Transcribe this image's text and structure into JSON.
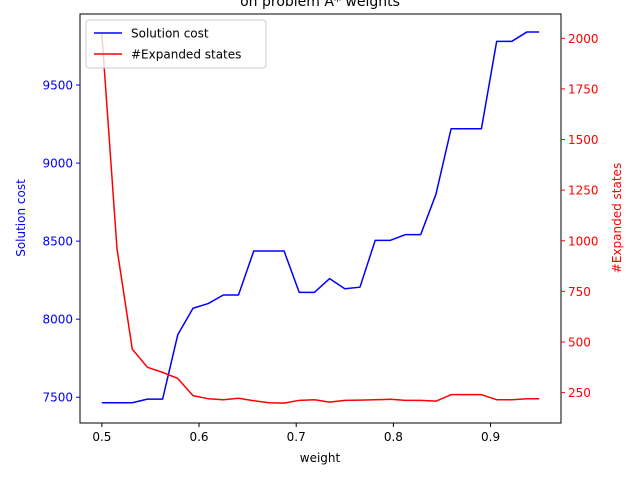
{
  "chart_data": {
    "type": "line",
    "title": "on problem A* weights",
    "xlabel": "weight",
    "ylabel_left": "Solution cost",
    "ylabel_right": "#Expanded states",
    "xlim": [
      0.4775,
      0.9725
    ],
    "ylim_left": [
      7335,
      9955
    ],
    "ylim_right": [
      100,
      2120
    ],
    "x_ticks": [
      0.5,
      0.6,
      0.7,
      0.8,
      0.9
    ],
    "x_tick_labels": [
      "0.5",
      "0.6",
      "0.7",
      "0.8",
      "0.9"
    ],
    "y_left_ticks": [
      7500,
      8000,
      8500,
      9000,
      9500
    ],
    "y_left_tick_labels": [
      "7500",
      "8000",
      "8500",
      "9000",
      "9500"
    ],
    "y_right_ticks": [
      250,
      500,
      750,
      1000,
      1250,
      1500,
      1750,
      2000
    ],
    "y_right_tick_labels": [
      "250",
      "500",
      "750",
      "1000",
      "1250",
      "1500",
      "1750",
      "2000"
    ],
    "x": [
      0.5,
      0.5156,
      0.5313,
      0.5469,
      0.5625,
      0.5781,
      0.5938,
      0.6094,
      0.625,
      0.6406,
      0.6563,
      0.6719,
      0.6875,
      0.7031,
      0.7188,
      0.7344,
      0.75,
      0.7656,
      0.7813,
      0.7969,
      0.8125,
      0.8281,
      0.8438,
      0.8594,
      0.875,
      0.8906,
      0.9063,
      0.9219,
      0.9375,
      0.95
    ],
    "series": [
      {
        "name": "Solution cost",
        "axis": "left",
        "color": "#0000ff",
        "values": [
          7465,
          7465,
          7465,
          7488,
          7488,
          7900,
          8070,
          8100,
          8155,
          8155,
          8437,
          8437,
          8437,
          8172,
          8172,
          8260,
          8195,
          8205,
          8505,
          8505,
          8542,
          8542,
          8800,
          9220,
          9220,
          9220,
          9780,
          9780,
          9840,
          9840
        ]
      },
      {
        "name": "#Expanded states",
        "axis": "right",
        "color": "#ff0000",
        "values": [
          2020,
          960,
          465,
          375,
          350,
          320,
          235,
          220,
          215,
          222,
          210,
          200,
          198,
          212,
          215,
          203,
          212,
          213,
          215,
          217,
          212,
          212,
          208,
          240,
          240,
          240,
          215,
          215,
          220,
          220
        ]
      }
    ],
    "legend_position": "upper-left",
    "grid": false
  }
}
